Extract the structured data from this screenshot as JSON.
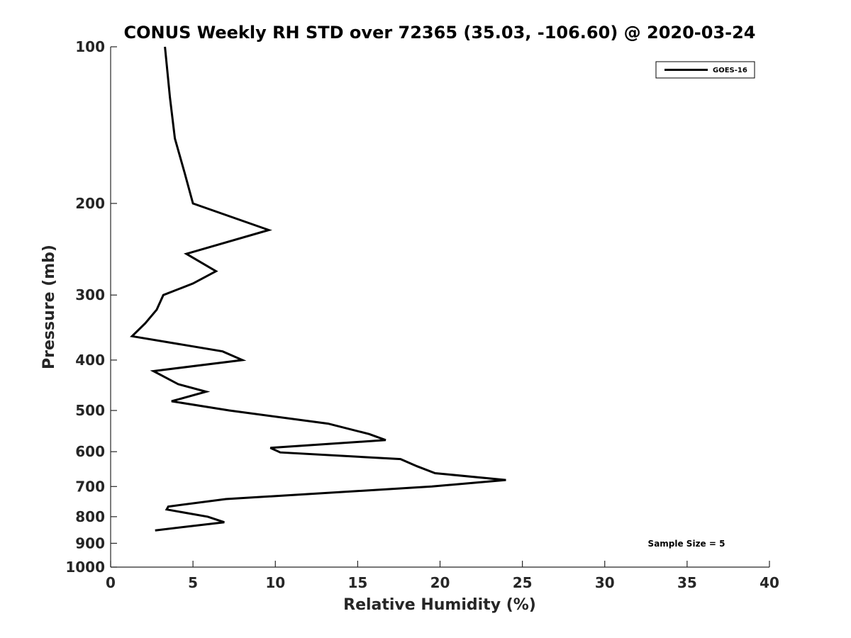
{
  "chart_data": {
    "type": "line",
    "title": "CONUS Weekly RH STD over 72365 (35.03, -106.60) @ 2020-03-24",
    "xlabel": "Relative Humidity (%)",
    "ylabel": "Pressure (mb)",
    "xlim": [
      0,
      40
    ],
    "ylim": [
      1000,
      100
    ],
    "yscale": "log",
    "y_reversed": true,
    "grid": false,
    "xticks": [
      0,
      5,
      10,
      15,
      20,
      25,
      30,
      35,
      40
    ],
    "yticks": [
      100,
      200,
      300,
      400,
      500,
      600,
      700,
      800,
      900,
      1000
    ],
    "legend_position": "top-right",
    "annotation": "Sample Size = 5",
    "series": [
      {
        "name": "GOES-16",
        "color": "#000000",
        "points": [
          {
            "x": 3.3,
            "y": 100
          },
          {
            "x": 3.6,
            "y": 125
          },
          {
            "x": 3.9,
            "y": 150
          },
          {
            "x": 4.5,
            "y": 175
          },
          {
            "x": 5.0,
            "y": 200
          },
          {
            "x": 9.6,
            "y": 225
          },
          {
            "x": 4.6,
            "y": 250
          },
          {
            "x": 6.4,
            "y": 270
          },
          {
            "x": 5.0,
            "y": 285
          },
          {
            "x": 3.2,
            "y": 300
          },
          {
            "x": 2.8,
            "y": 320
          },
          {
            "x": 2.1,
            "y": 340
          },
          {
            "x": 1.3,
            "y": 360
          },
          {
            "x": 6.8,
            "y": 385
          },
          {
            "x": 8.0,
            "y": 400
          },
          {
            "x": 2.6,
            "y": 420
          },
          {
            "x": 4.1,
            "y": 445
          },
          {
            "x": 5.8,
            "y": 460
          },
          {
            "x": 3.7,
            "y": 480
          },
          {
            "x": 7.2,
            "y": 500
          },
          {
            "x": 13.2,
            "y": 530
          },
          {
            "x": 15.7,
            "y": 555
          },
          {
            "x": 16.7,
            "y": 570
          },
          {
            "x": 9.7,
            "y": 590
          },
          {
            "x": 10.3,
            "y": 602
          },
          {
            "x": 17.6,
            "y": 620
          },
          {
            "x": 18.6,
            "y": 640
          },
          {
            "x": 19.7,
            "y": 660
          },
          {
            "x": 24.0,
            "y": 680
          },
          {
            "x": 19.5,
            "y": 700
          },
          {
            "x": 7.0,
            "y": 740
          },
          {
            "x": 3.5,
            "y": 765
          },
          {
            "x": 3.4,
            "y": 775
          },
          {
            "x": 5.9,
            "y": 800
          },
          {
            "x": 6.9,
            "y": 820
          },
          {
            "x": 2.7,
            "y": 850
          }
        ]
      }
    ]
  }
}
